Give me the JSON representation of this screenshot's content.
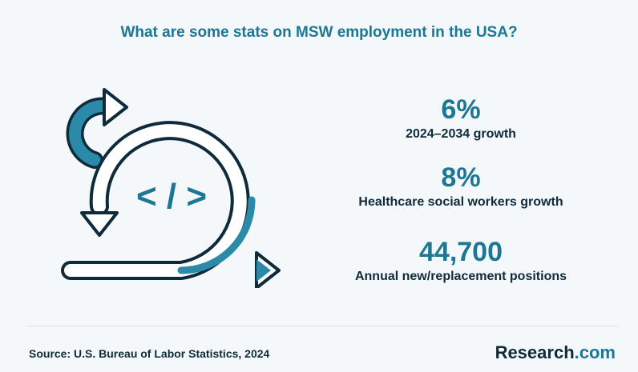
{
  "title": "What are some stats on MSW employment in the USA?",
  "stats": [
    {
      "value": "6%",
      "label": "2024–2034 growth"
    },
    {
      "value": "8%",
      "label": "Healthcare social workers growth"
    },
    {
      "value": "44,700",
      "label": "Annual new/replacement positions"
    }
  ],
  "illustration": {
    "code_symbol": "< / >",
    "icon": "agile-cycle-arrow-icon"
  },
  "footer": {
    "source": "Source:  U.S. Bureau of Labor Statistics, 2024"
  },
  "logo": {
    "main": "Research",
    "suffix": ".com"
  },
  "colors": {
    "accent": "#1c7795",
    "dark": "#0f2a3a",
    "background": "#f4f8fa"
  }
}
